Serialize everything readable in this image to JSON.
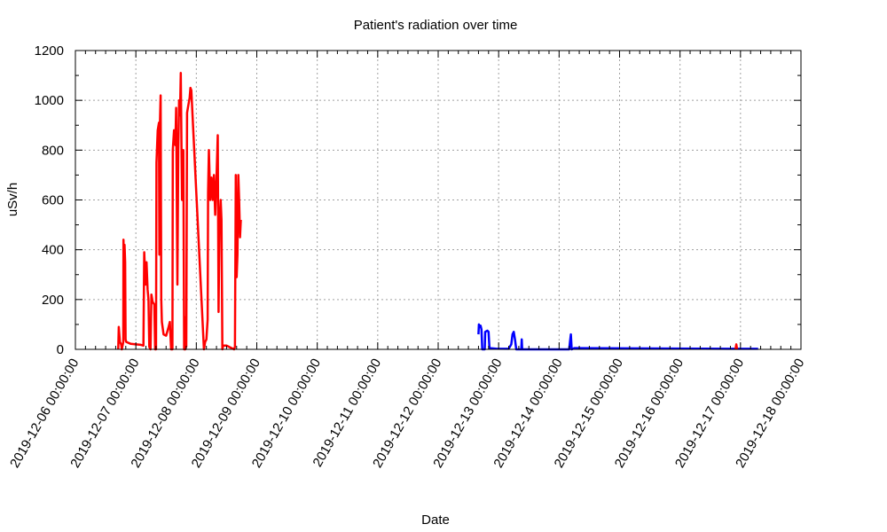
{
  "chart_data": {
    "type": "line",
    "title": "Patient's radiation over time",
    "xlabel": "Date",
    "ylabel": "uSv/h",
    "ylim": [
      0,
      1200
    ],
    "xlim": [
      "2019-12-06 00:00:00",
      "2019-12-18 00:00:00"
    ],
    "grid": true,
    "legend": "none",
    "y_ticks": [
      "0",
      "200",
      "400",
      "600",
      "800",
      "1000",
      "1200"
    ],
    "x_ticks": [
      "2019-12-06 00:00:00",
      "2019-12-07 00:00:00",
      "2019-12-08 00:00:00",
      "2019-12-09 00:00:00",
      "2019-12-10 00:00:00",
      "2019-12-11 00:00:00",
      "2019-12-12 00:00:00",
      "2019-12-13 00:00:00",
      "2019-12-14 00:00:00",
      "2019-12-15 00:00:00",
      "2019-12-16 00:00:00",
      "2019-12-17 00:00:00",
      "2019-12-18 00:00:00"
    ],
    "series": [
      {
        "color": "#ff0000",
        "points": [
          [
            "2019-12-06 17:00",
            0
          ],
          [
            "2019-12-06 17:12",
            90
          ],
          [
            "2019-12-06 17:40",
            30
          ],
          [
            "2019-12-06 18:10",
            20
          ],
          [
            "2019-12-06 18:25",
            0
          ],
          [
            "2019-12-06 19:00",
            30
          ],
          [
            "2019-12-06 19:05",
            440
          ],
          [
            "2019-12-06 19:20",
            300
          ],
          [
            "2019-12-06 19:30",
            420
          ],
          [
            "2019-12-06 19:45",
            350
          ],
          [
            "2019-12-06 19:55",
            40
          ],
          [
            "2019-12-06 20:10",
            30
          ],
          [
            "2019-12-06 22:00",
            22
          ],
          [
            "2019-12-07 00:00",
            20
          ],
          [
            "2019-12-07 02:00",
            18
          ],
          [
            "2019-12-07 03:00",
            15
          ],
          [
            "2019-12-07 03:20",
            390
          ],
          [
            "2019-12-07 03:50",
            260
          ],
          [
            "2019-12-07 04:15",
            350
          ],
          [
            "2019-12-07 04:40",
            240
          ],
          [
            "2019-12-07 05:00",
            200
          ],
          [
            "2019-12-07 05:20",
            10
          ],
          [
            "2019-12-07 05:50",
            0
          ],
          [
            "2019-12-07 06:10",
            220
          ],
          [
            "2019-12-07 06:40",
            190
          ],
          [
            "2019-12-07 07:20",
            180
          ],
          [
            "2019-12-07 07:40",
            0
          ],
          [
            "2019-12-07 08:00",
            0
          ],
          [
            "2019-12-07 08:10",
            750
          ],
          [
            "2019-12-07 08:40",
            880
          ],
          [
            "2019-12-07 09:10",
            910
          ],
          [
            "2019-12-07 09:20",
            380
          ],
          [
            "2019-12-07 09:35",
            920
          ],
          [
            "2019-12-07 09:50",
            1020
          ],
          [
            "2019-12-07 10:05",
            200
          ],
          [
            "2019-12-07 10:20",
            110
          ],
          [
            "2019-12-07 11:00",
            60
          ],
          [
            "2019-12-07 12:00",
            55
          ],
          [
            "2019-12-07 13:00",
            90
          ],
          [
            "2019-12-07 13:30",
            110
          ],
          [
            "2019-12-07 14:00",
            0
          ],
          [
            "2019-12-07 14:30",
            0
          ],
          [
            "2019-12-07 14:40",
            800
          ],
          [
            "2019-12-07 15:10",
            880
          ],
          [
            "2019-12-07 15:40",
            820
          ],
          [
            "2019-12-07 16:00",
            970
          ],
          [
            "2019-12-07 16:30",
            260
          ],
          [
            "2019-12-07 16:50",
            800
          ],
          [
            "2019-12-07 17:10",
            1000
          ],
          [
            "2019-12-07 17:30",
            940
          ],
          [
            "2019-12-07 17:50",
            1110
          ],
          [
            "2019-12-07 18:20",
            600
          ],
          [
            "2019-12-07 18:50",
            800
          ],
          [
            "2019-12-07 19:10",
            0
          ],
          [
            "2019-12-07 19:40",
            0
          ],
          [
            "2019-12-07 19:50",
            130
          ],
          [
            "2019-12-07 20:00",
            10
          ],
          [
            "2019-12-07 20:20",
            950
          ],
          [
            "2019-12-07 20:50",
            980
          ],
          [
            "2019-12-07 21:20",
            1010
          ],
          [
            "2019-12-07 21:40",
            1050
          ],
          [
            "2019-12-07 22:00",
            1040
          ],
          [
            "2019-12-08 03:00",
            0
          ],
          [
            "2019-12-08 03:30",
            30
          ],
          [
            "2019-12-08 04:00",
            40
          ],
          [
            "2019-12-08 04:30",
            120
          ],
          [
            "2019-12-08 04:40",
            630
          ],
          [
            "2019-12-08 05:00",
            800
          ],
          [
            "2019-12-08 05:30",
            600
          ],
          [
            "2019-12-08 06:00",
            690
          ],
          [
            "2019-12-08 06:30",
            600
          ],
          [
            "2019-12-08 07:00",
            700
          ],
          [
            "2019-12-08 07:30",
            540
          ],
          [
            "2019-12-08 08:00",
            690
          ],
          [
            "2019-12-08 08:30",
            860
          ],
          [
            "2019-12-08 08:50",
            150
          ],
          [
            "2019-12-08 09:10",
            500
          ],
          [
            "2019-12-08 09:40",
            600
          ],
          [
            "2019-12-08 10:00",
            520
          ],
          [
            "2019-12-08 10:20",
            0
          ],
          [
            "2019-12-08 10:40",
            15
          ],
          [
            "2019-12-08 12:00",
            15
          ],
          [
            "2019-12-08 15:00",
            0
          ],
          [
            "2019-12-08 15:20",
            10
          ],
          [
            "2019-12-08 15:40",
            700
          ],
          [
            "2019-12-08 16:00",
            290
          ],
          [
            "2019-12-08 16:20",
            380
          ],
          [
            "2019-12-08 16:40",
            700
          ],
          [
            "2019-12-08 17:00",
            600
          ],
          [
            "2019-12-08 17:20",
            450
          ],
          [
            "2019-12-08 17:40",
            520
          ]
        ]
      },
      {
        "color": "#0000ff",
        "points": [
          [
            "2019-12-12 16:00",
            60
          ],
          [
            "2019-12-12 16:10",
            100
          ],
          [
            "2019-12-12 16:30",
            90
          ],
          [
            "2019-12-12 16:50",
            95
          ],
          [
            "2019-12-12 17:10",
            80
          ],
          [
            "2019-12-12 17:30",
            0
          ],
          [
            "2019-12-12 18:30",
            0
          ],
          [
            "2019-12-12 18:40",
            70
          ],
          [
            "2019-12-12 19:30",
            75
          ],
          [
            "2019-12-12 20:00",
            70
          ],
          [
            "2019-12-12 20:20",
            5
          ],
          [
            "2019-12-12 23:00",
            3
          ],
          [
            "2019-12-13 04:00",
            2
          ],
          [
            "2019-12-13 05:00",
            20
          ],
          [
            "2019-12-13 05:30",
            60
          ],
          [
            "2019-12-13 06:00",
            70
          ],
          [
            "2019-12-13 06:30",
            40
          ],
          [
            "2019-12-13 07:00",
            0
          ],
          [
            "2019-12-13 09:00",
            0
          ],
          [
            "2019-12-13 09:10",
            40
          ],
          [
            "2019-12-13 09:20",
            0
          ],
          [
            "2019-12-14 04:00",
            0
          ],
          [
            "2019-12-14 04:20",
            30
          ],
          [
            "2019-12-14 04:40",
            60
          ],
          [
            "2019-12-14 05:00",
            0
          ],
          [
            "2019-12-14 06:00",
            5
          ],
          [
            "2019-12-14 07:00",
            5
          ],
          [
            "2019-12-16 20:00",
            2
          ],
          [
            "2019-12-17 00:00",
            2
          ],
          [
            "2019-12-17 05:00",
            2
          ],
          [
            "2019-12-17 07:00",
            2
          ]
        ]
      },
      {
        "color": "#ff0000",
        "points": [
          [
            "2019-12-16 22:00",
            0
          ],
          [
            "2019-12-16 22:20",
            20
          ],
          [
            "2019-12-16 22:40",
            0
          ]
        ]
      }
    ]
  }
}
